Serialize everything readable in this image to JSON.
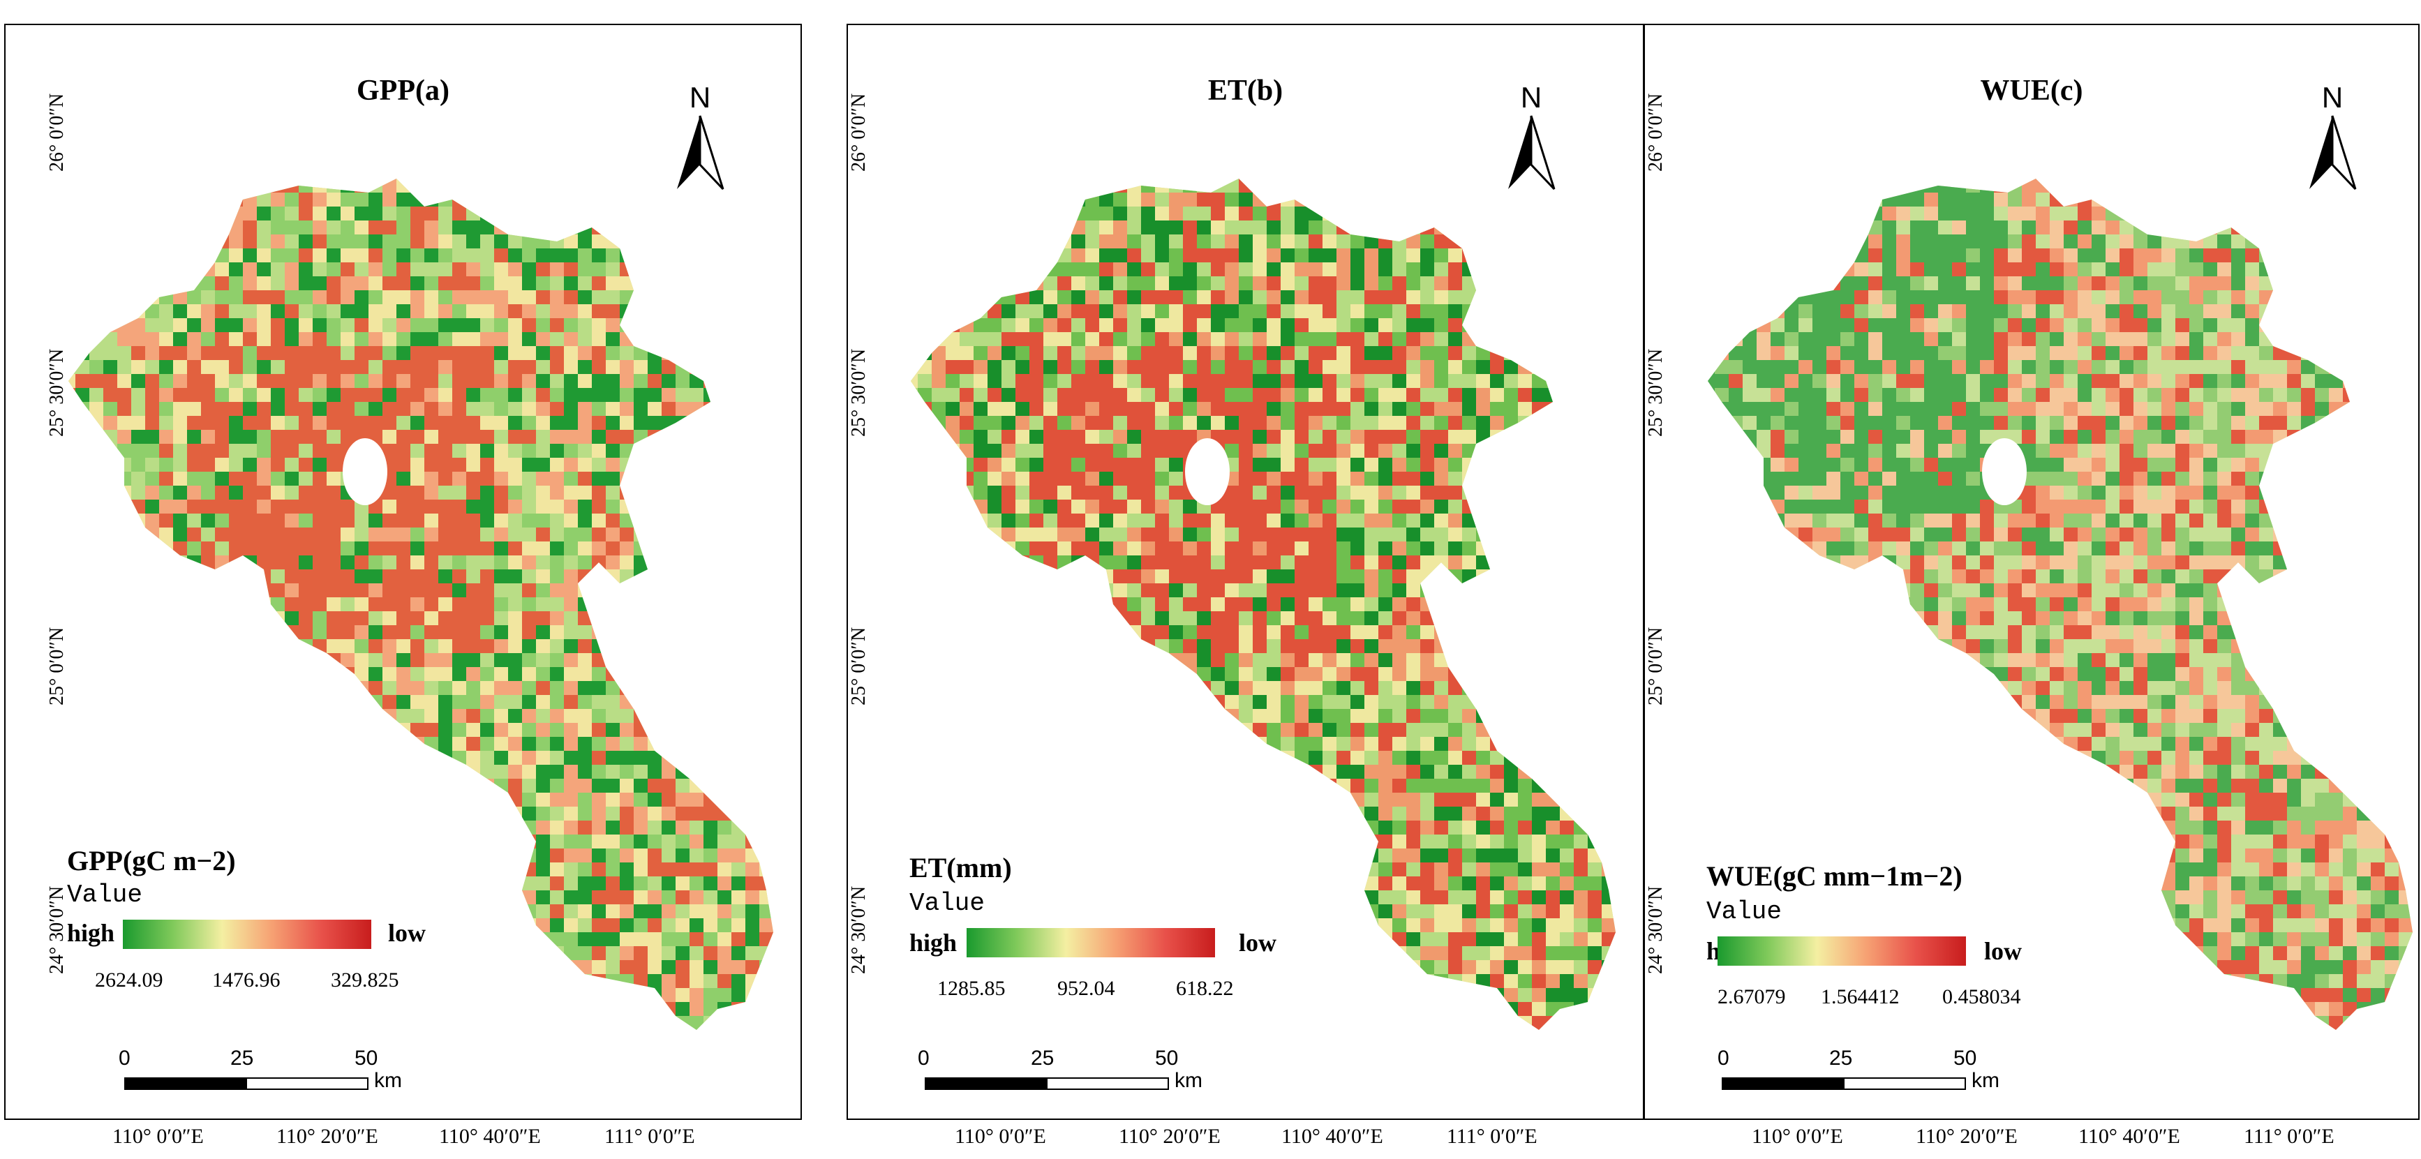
{
  "panels": [
    {
      "title": "GPP(a)",
      "north": "N",
      "legend": {
        "title": "GPP(gC m−2)",
        "sub": "Value",
        "high": "high",
        "low": "low",
        "values": [
          "2624.09",
          "1476.96",
          "329.825"
        ],
        "gradient": [
          "#1a9a2e",
          "#7fc95a",
          "#f4efa2",
          "#f6a173",
          "#e8514a",
          "#c81d1d"
        ]
      },
      "palette": [
        "#1f9a33",
        "#8fcf6b",
        "#b9dd86",
        "#f2e6a0",
        "#f4a57b",
        "#e2613f"
      ]
    },
    {
      "title": "ET(b)",
      "north": "N",
      "legend": {
        "title": "ET(mm)",
        "sub": "Value",
        "high": "high",
        "low": "low",
        "values": [
          "1285.85",
          "952.04",
          "618.22"
        ],
        "gradient": [
          "#1a9a2e",
          "#7fc95a",
          "#f4efa2",
          "#f6a173",
          "#e8514a",
          "#c81d1d"
        ]
      },
      "palette": [
        "#188f2b",
        "#6fbf4f",
        "#b5dc82",
        "#efe8a0",
        "#f09a6d",
        "#e0523a"
      ]
    },
    {
      "title": "WUE(c)",
      "north": "N",
      "legend": {
        "title": "WUE(gC mm−1m−2)",
        "sub": "Value",
        "high": "high",
        "low": "low",
        "values": [
          "2.67079",
          "1.564412",
          "0.458034"
        ],
        "gradient": [
          "#1a9a2e",
          "#7fc95a",
          "#f4efa2",
          "#f6a173",
          "#e8514a",
          "#c81d1d"
        ]
      },
      "palette": [
        "#4aab4f",
        "#93cc72",
        "#c7e196",
        "#f6c79a",
        "#f39a72",
        "#e3583f"
      ]
    }
  ],
  "scale_bar": {
    "labels": [
      "0",
      "25",
      "50"
    ],
    "unit": "km"
  },
  "x_ticks": [
    "110° 0′0″E",
    "110° 20′0″E",
    "110° 40′0″E",
    "111° 0′0″E"
  ],
  "y_ticks": [
    "26° 0′0″N",
    "25° 30′0″N",
    "25° 0′0″N",
    "24° 30′0″N"
  ]
}
